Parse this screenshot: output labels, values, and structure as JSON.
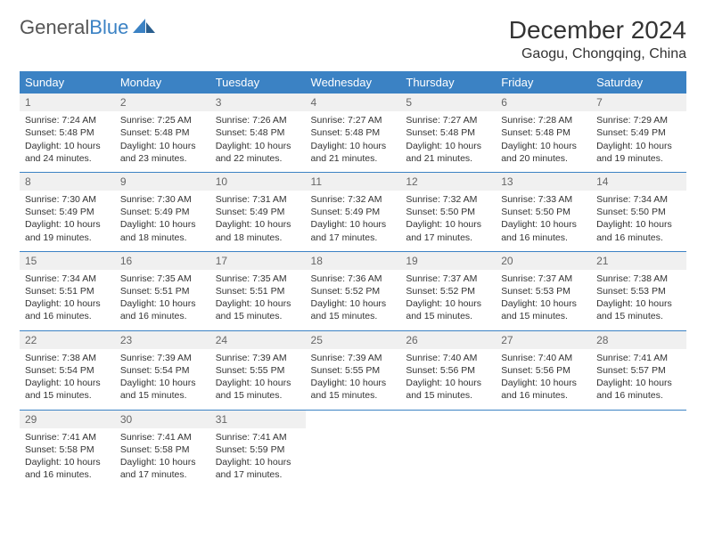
{
  "brand": {
    "part1": "General",
    "part2": "Blue"
  },
  "title": "December 2024",
  "location": "Gaogu, Chongqing, China",
  "colors": {
    "header_bg": "#3b82c4",
    "header_text": "#ffffff",
    "daynum_bg": "#f0f0f0",
    "divider": "#3b82c4",
    "text": "#333333"
  },
  "layout": {
    "columns": 7,
    "rows": 5,
    "font_size_body": 10.5,
    "font_size_title": 28
  },
  "weekdays": [
    "Sunday",
    "Monday",
    "Tuesday",
    "Wednesday",
    "Thursday",
    "Friday",
    "Saturday"
  ],
  "days": [
    {
      "n": 1,
      "sunrise": "7:24 AM",
      "sunset": "5:48 PM",
      "daylight": "10 hours and 24 minutes."
    },
    {
      "n": 2,
      "sunrise": "7:25 AM",
      "sunset": "5:48 PM",
      "daylight": "10 hours and 23 minutes."
    },
    {
      "n": 3,
      "sunrise": "7:26 AM",
      "sunset": "5:48 PM",
      "daylight": "10 hours and 22 minutes."
    },
    {
      "n": 4,
      "sunrise": "7:27 AM",
      "sunset": "5:48 PM",
      "daylight": "10 hours and 21 minutes."
    },
    {
      "n": 5,
      "sunrise": "7:27 AM",
      "sunset": "5:48 PM",
      "daylight": "10 hours and 21 minutes."
    },
    {
      "n": 6,
      "sunrise": "7:28 AM",
      "sunset": "5:48 PM",
      "daylight": "10 hours and 20 minutes."
    },
    {
      "n": 7,
      "sunrise": "7:29 AM",
      "sunset": "5:49 PM",
      "daylight": "10 hours and 19 minutes."
    },
    {
      "n": 8,
      "sunrise": "7:30 AM",
      "sunset": "5:49 PM",
      "daylight": "10 hours and 19 minutes."
    },
    {
      "n": 9,
      "sunrise": "7:30 AM",
      "sunset": "5:49 PM",
      "daylight": "10 hours and 18 minutes."
    },
    {
      "n": 10,
      "sunrise": "7:31 AM",
      "sunset": "5:49 PM",
      "daylight": "10 hours and 18 minutes."
    },
    {
      "n": 11,
      "sunrise": "7:32 AM",
      "sunset": "5:49 PM",
      "daylight": "10 hours and 17 minutes."
    },
    {
      "n": 12,
      "sunrise": "7:32 AM",
      "sunset": "5:50 PM",
      "daylight": "10 hours and 17 minutes."
    },
    {
      "n": 13,
      "sunrise": "7:33 AM",
      "sunset": "5:50 PM",
      "daylight": "10 hours and 16 minutes."
    },
    {
      "n": 14,
      "sunrise": "7:34 AM",
      "sunset": "5:50 PM",
      "daylight": "10 hours and 16 minutes."
    },
    {
      "n": 15,
      "sunrise": "7:34 AM",
      "sunset": "5:51 PM",
      "daylight": "10 hours and 16 minutes."
    },
    {
      "n": 16,
      "sunrise": "7:35 AM",
      "sunset": "5:51 PM",
      "daylight": "10 hours and 16 minutes."
    },
    {
      "n": 17,
      "sunrise": "7:35 AM",
      "sunset": "5:51 PM",
      "daylight": "10 hours and 15 minutes."
    },
    {
      "n": 18,
      "sunrise": "7:36 AM",
      "sunset": "5:52 PM",
      "daylight": "10 hours and 15 minutes."
    },
    {
      "n": 19,
      "sunrise": "7:37 AM",
      "sunset": "5:52 PM",
      "daylight": "10 hours and 15 minutes."
    },
    {
      "n": 20,
      "sunrise": "7:37 AM",
      "sunset": "5:53 PM",
      "daylight": "10 hours and 15 minutes."
    },
    {
      "n": 21,
      "sunrise": "7:38 AM",
      "sunset": "5:53 PM",
      "daylight": "10 hours and 15 minutes."
    },
    {
      "n": 22,
      "sunrise": "7:38 AM",
      "sunset": "5:54 PM",
      "daylight": "10 hours and 15 minutes."
    },
    {
      "n": 23,
      "sunrise": "7:39 AM",
      "sunset": "5:54 PM",
      "daylight": "10 hours and 15 minutes."
    },
    {
      "n": 24,
      "sunrise": "7:39 AM",
      "sunset": "5:55 PM",
      "daylight": "10 hours and 15 minutes."
    },
    {
      "n": 25,
      "sunrise": "7:39 AM",
      "sunset": "5:55 PM",
      "daylight": "10 hours and 15 minutes."
    },
    {
      "n": 26,
      "sunrise": "7:40 AM",
      "sunset": "5:56 PM",
      "daylight": "10 hours and 15 minutes."
    },
    {
      "n": 27,
      "sunrise": "7:40 AM",
      "sunset": "5:56 PM",
      "daylight": "10 hours and 16 minutes."
    },
    {
      "n": 28,
      "sunrise": "7:41 AM",
      "sunset": "5:57 PM",
      "daylight": "10 hours and 16 minutes."
    },
    {
      "n": 29,
      "sunrise": "7:41 AM",
      "sunset": "5:58 PM",
      "daylight": "10 hours and 16 minutes."
    },
    {
      "n": 30,
      "sunrise": "7:41 AM",
      "sunset": "5:58 PM",
      "daylight": "10 hours and 17 minutes."
    },
    {
      "n": 31,
      "sunrise": "7:41 AM",
      "sunset": "5:59 PM",
      "daylight": "10 hours and 17 minutes."
    }
  ],
  "labels": {
    "sunrise": "Sunrise:",
    "sunset": "Sunset:",
    "daylight": "Daylight:"
  }
}
